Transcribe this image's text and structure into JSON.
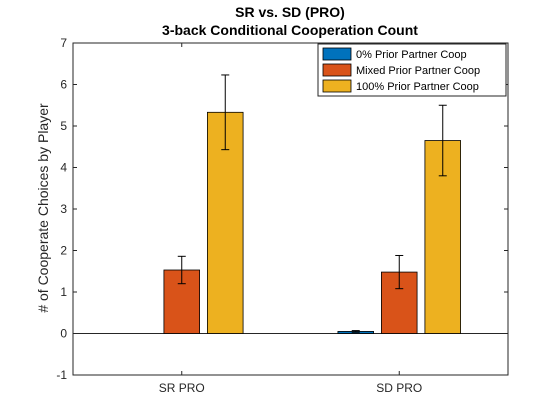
{
  "chart_data": {
    "type": "bar",
    "title": "SR vs. SD (PRO)",
    "subtitle": "3-back Conditional Cooperation Count",
    "xlabel": "",
    "ylabel": "# of Cooperate Choices by Player",
    "ylim": [
      -1,
      7
    ],
    "yticks": [
      "-1",
      "0",
      "1",
      "2",
      "3",
      "4",
      "5",
      "6",
      "7"
    ],
    "categories": [
      "SR PRO",
      "SD PRO"
    ],
    "legend_position": "top-right",
    "grid": false,
    "series": [
      {
        "name": "0% Prior Partner Coop",
        "color": "#0072bd",
        "values": [
          0.0,
          0.05
        ],
        "err": [
          0.0,
          0.02
        ]
      },
      {
        "name": "Mixed Prior Partner Coop",
        "color": "#d95319",
        "values": [
          1.53,
          1.48
        ],
        "err": [
          0.33,
          0.4
        ]
      },
      {
        "name": "100% Prior Partner Coop",
        "color": "#edb120",
        "values": [
          5.33,
          4.65
        ],
        "err": [
          0.9,
          0.85
        ]
      }
    ]
  }
}
